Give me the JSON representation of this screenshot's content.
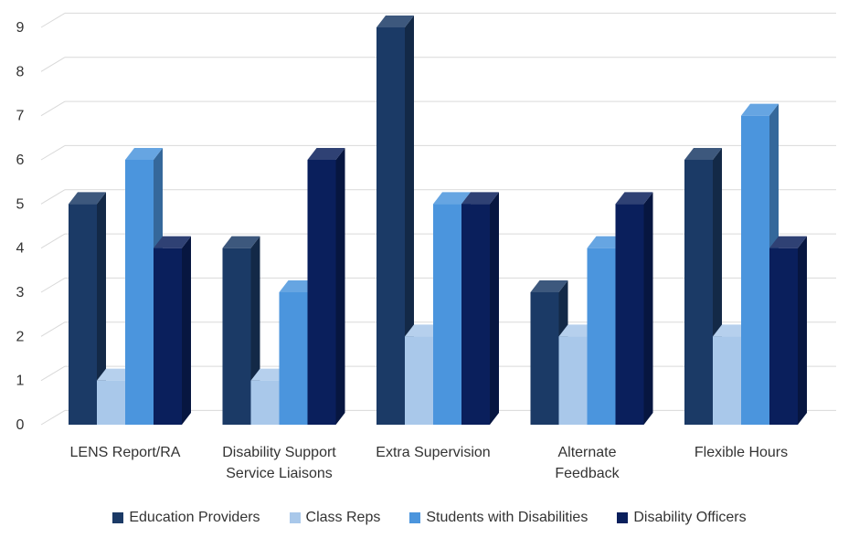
{
  "chart_data": {
    "type": "bar",
    "categories": [
      [
        "LENS Report/RA"
      ],
      [
        "Disability Support",
        "Service Liaisons"
      ],
      [
        "Extra Supervision"
      ],
      [
        "Alternate",
        "Feedback"
      ],
      [
        "Flexible Hours"
      ]
    ],
    "series": [
      {
        "name": "Education Providers",
        "color": "#1b3a66",
        "values": [
          5,
          4,
          9,
          3,
          6
        ]
      },
      {
        "name": "Class Reps",
        "color": "#a9c8ea",
        "values": [
          1,
          1,
          2,
          2,
          2
        ]
      },
      {
        "name": "Students with Disabilities",
        "color": "#4b95dd",
        "values": [
          6,
          3,
          5,
          4,
          7
        ]
      },
      {
        "name": "Disability Officers",
        "color": "#0a1f5c",
        "values": [
          4,
          6,
          5,
          5,
          4
        ]
      }
    ],
    "yticks": [
      "0",
      "1",
      "2",
      "3",
      "4",
      "5",
      "6",
      "7",
      "8",
      "9"
    ],
    "ylim": [
      0,
      9
    ],
    "grid": true,
    "legend_position": "bottom"
  }
}
